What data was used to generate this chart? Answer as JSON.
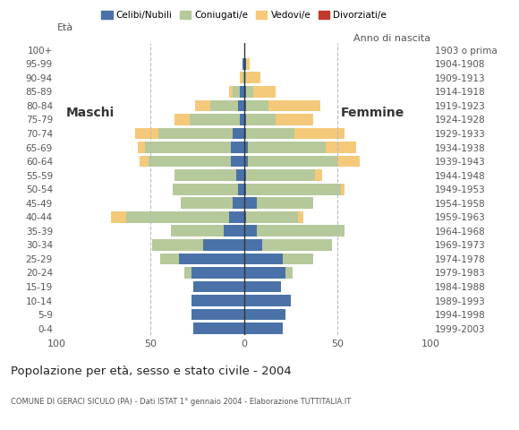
{
  "age_groups": [
    "0-4",
    "5-9",
    "10-14",
    "15-19",
    "20-24",
    "25-29",
    "30-34",
    "35-39",
    "40-44",
    "45-49",
    "50-54",
    "55-59",
    "60-64",
    "65-69",
    "70-74",
    "75-79",
    "80-84",
    "85-89",
    "90-94",
    "95-99",
    "100+"
  ],
  "birth_years": [
    "1999-2003",
    "1994-1998",
    "1989-1993",
    "1984-1988",
    "1979-1983",
    "1974-1978",
    "1969-1973",
    "1964-1968",
    "1959-1963",
    "1954-1958",
    "1949-1953",
    "1944-1948",
    "1939-1943",
    "1934-1938",
    "1929-1933",
    "1924-1928",
    "1919-1923",
    "1914-1918",
    "1909-1913",
    "1904-1908",
    "1903 o prima"
  ],
  "males": {
    "celibi": [
      27,
      28,
      28,
      27,
      28,
      35,
      22,
      11,
      8,
      6,
      3,
      4,
      7,
      7,
      6,
      2,
      3,
      2,
      0,
      1,
      0
    ],
    "coniugati": [
      0,
      0,
      0,
      0,
      4,
      10,
      27,
      28,
      55,
      28,
      35,
      33,
      44,
      46,
      40,
      27,
      15,
      4,
      1,
      0,
      0
    ],
    "vedovi": [
      0,
      0,
      0,
      0,
      0,
      0,
      0,
      0,
      8,
      0,
      0,
      0,
      5,
      4,
      12,
      8,
      8,
      2,
      1,
      0,
      0
    ],
    "divorziati": [
      0,
      0,
      0,
      0,
      0,
      0,
      0,
      0,
      0,
      0,
      0,
      0,
      0,
      0,
      0,
      0,
      0,
      0,
      0,
      0,
      0
    ]
  },
  "females": {
    "nubili": [
      21,
      22,
      25,
      20,
      22,
      21,
      10,
      7,
      1,
      7,
      1,
      1,
      2,
      2,
      1,
      1,
      1,
      1,
      0,
      1,
      0
    ],
    "coniugate": [
      0,
      0,
      0,
      0,
      4,
      16,
      37,
      47,
      28,
      30,
      51,
      37,
      48,
      42,
      26,
      16,
      12,
      4,
      1,
      0,
      0
    ],
    "vedove": [
      0,
      0,
      0,
      0,
      0,
      0,
      0,
      0,
      3,
      0,
      2,
      4,
      12,
      16,
      27,
      20,
      28,
      12,
      8,
      2,
      0
    ],
    "divorziate": [
      0,
      0,
      0,
      0,
      0,
      0,
      0,
      0,
      0,
      0,
      0,
      0,
      0,
      0,
      0,
      0,
      0,
      0,
      0,
      0,
      0
    ]
  },
  "colors": {
    "celibi": "#4a72a8",
    "coniugati": "#b5c99a",
    "vedovi": "#f5c97a",
    "divorziati": "#c0392b"
  },
  "xlim": 100,
  "title": "Popolazione per età, sesso e stato civile - 2004",
  "subtitle": "COMUNE DI GERACI SICULO (PA) - Dati ISTAT 1° gennaio 2004 - Elaborazione TUTTITALIA.IT",
  "ylabel_left": "Età",
  "ylabel_right": "Anno di nascita",
  "label_maschi": "Maschi",
  "label_femmine": "Femmine",
  "legend_labels": [
    "Celibi/Nubili",
    "Coniugati/e",
    "Vedovi/e",
    "Divorziati/e"
  ]
}
